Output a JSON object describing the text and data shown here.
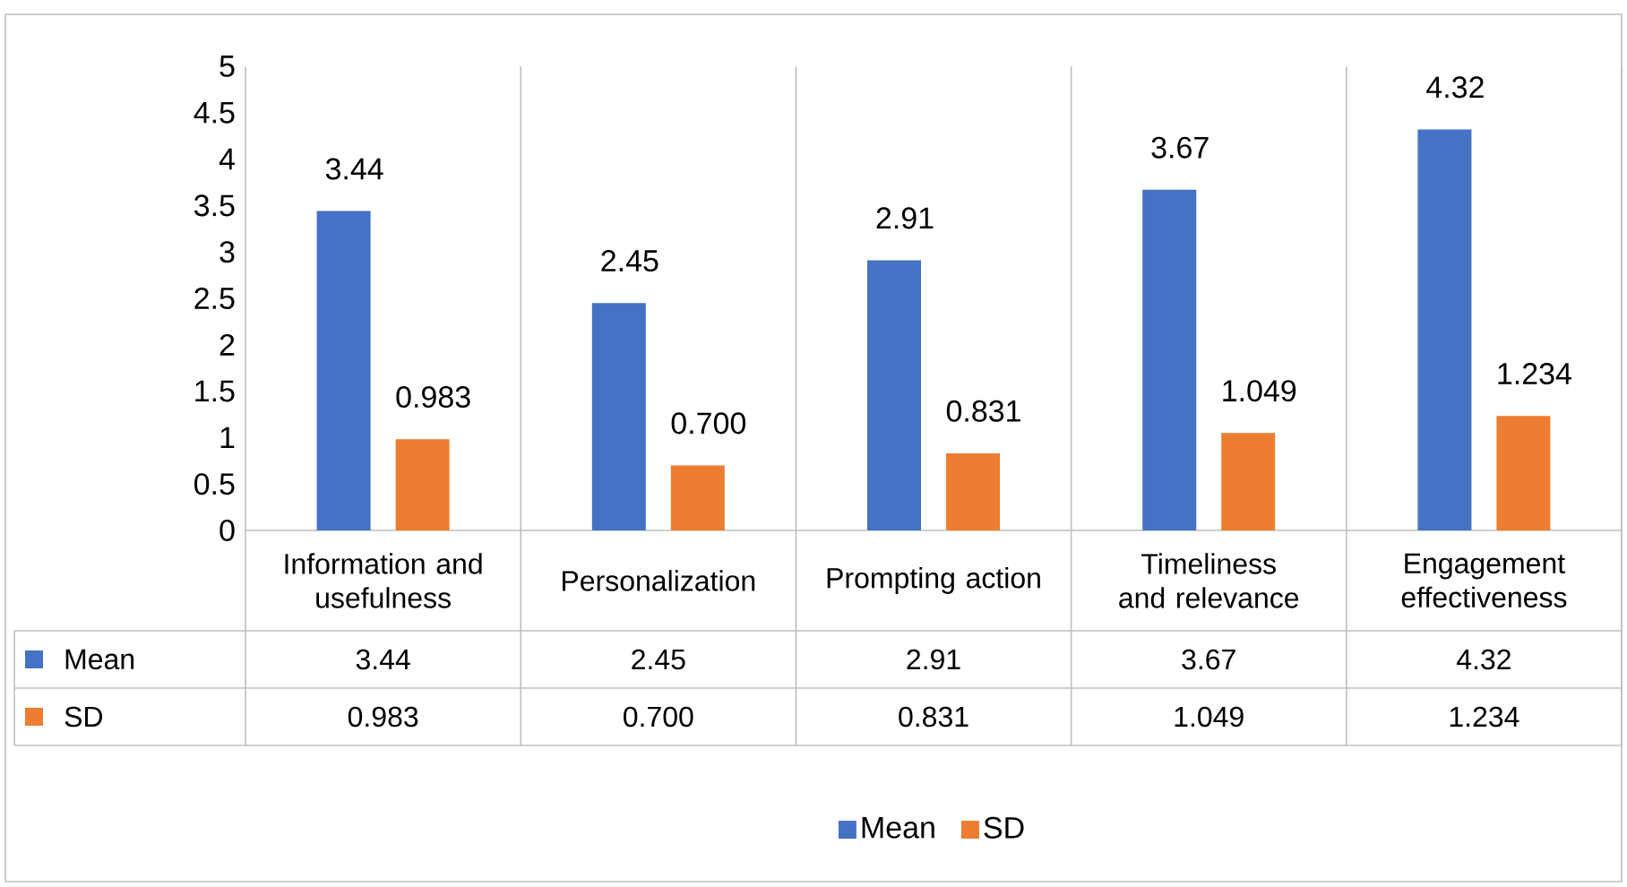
{
  "chart_data": {
    "type": "bar",
    "categories": [
      "Information and usefulness",
      "Personalization",
      "Prompting action",
      "Timeliness and relevance",
      "Engagement effectiveness"
    ],
    "series": [
      {
        "name": "Mean",
        "color": "#4472c4",
        "values": [
          3.44,
          2.45,
          2.91,
          3.67,
          4.32
        ],
        "value_labels": [
          "3.44",
          "2.45",
          "2.91",
          "3.67",
          "4.32"
        ]
      },
      {
        "name": "SD",
        "color": "#ed7d31",
        "values": [
          0.983,
          0.7,
          0.831,
          1.049,
          1.234
        ],
        "value_labels": [
          "0.983",
          "0.700",
          "0.831",
          "1.049",
          "1.234"
        ]
      }
    ],
    "ylim": [
      0,
      5
    ],
    "yticks": [
      0,
      0.5,
      1,
      1.5,
      2,
      2.5,
      3,
      3.5,
      4,
      4.5,
      5
    ],
    "legend": "bottom"
  }
}
